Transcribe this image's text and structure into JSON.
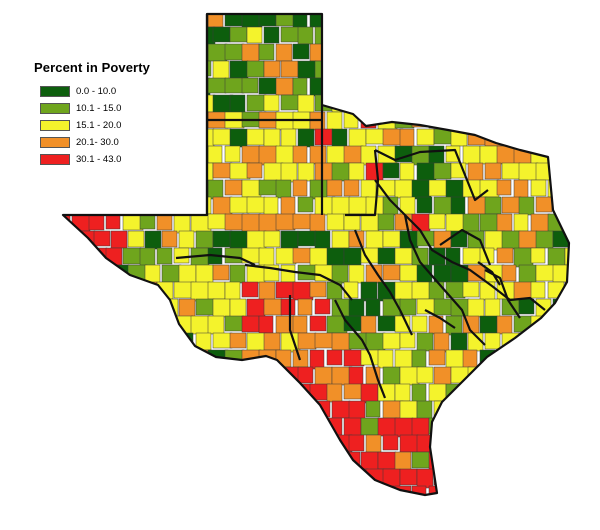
{
  "legend": {
    "title": "Percent in Poverty",
    "classes": [
      {
        "label": "0.0 - 10.0",
        "color": "#0d5e0d"
      },
      {
        "label": "10.1 - 15.0",
        "color": "#6fa51d"
      },
      {
        "label": "15.1 - 20.0",
        "color": "#f4f32c"
      },
      {
        "label": "20.1- 30.0",
        "color": "#f19028"
      },
      {
        "label": "30.1 - 43.0",
        "color": "#ee2020"
      }
    ]
  },
  "colors": {
    "background": "#ffffff",
    "county_border": "#3a3a3a",
    "region_border": "#111111"
  }
}
